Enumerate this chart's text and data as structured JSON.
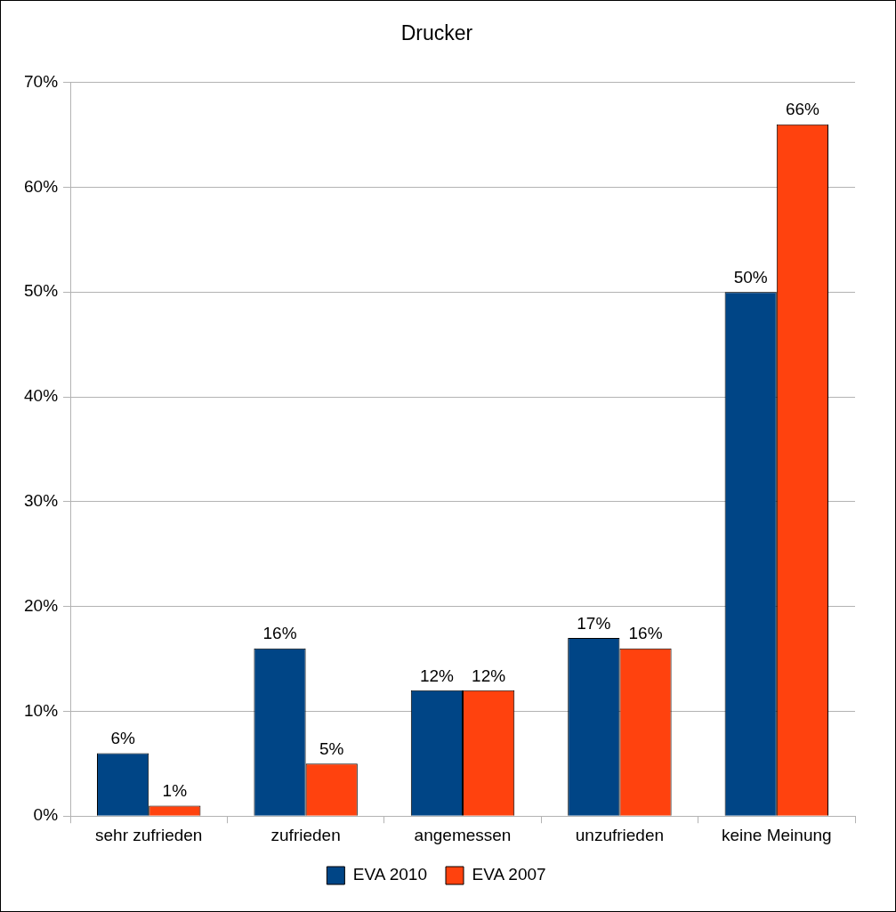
{
  "chart_data": {
    "type": "bar",
    "title": "Drucker",
    "categories": [
      "sehr zufrieden",
      "zufrieden",
      "angemessen",
      "unzufrieden",
      "keine Meinung"
    ],
    "series": [
      {
        "name": "EVA 2010",
        "color": "#004586",
        "values": [
          6,
          16,
          12,
          17,
          50
        ],
        "value_labels": [
          "6%",
          "16%",
          "12%",
          "17%",
          "50%"
        ]
      },
      {
        "name": "EVA 2007",
        "color": "#ff420e",
        "values": [
          1,
          5,
          12,
          16,
          66
        ],
        "value_labels": [
          "1%",
          "5%",
          "12%",
          "16%",
          "66%"
        ]
      }
    ],
    "ylim": [
      0,
      70
    ],
    "yticks": [
      {
        "value": 0,
        "label": "0%"
      },
      {
        "value": 10,
        "label": "10%"
      },
      {
        "value": 20,
        "label": "20%"
      },
      {
        "value": 30,
        "label": "30%"
      },
      {
        "value": 40,
        "label": "40%"
      },
      {
        "value": 50,
        "label": "50%"
      },
      {
        "value": 60,
        "label": "60%"
      },
      {
        "value": 70,
        "label": "70%"
      }
    ],
    "grid": "y",
    "legend": "bottom"
  }
}
